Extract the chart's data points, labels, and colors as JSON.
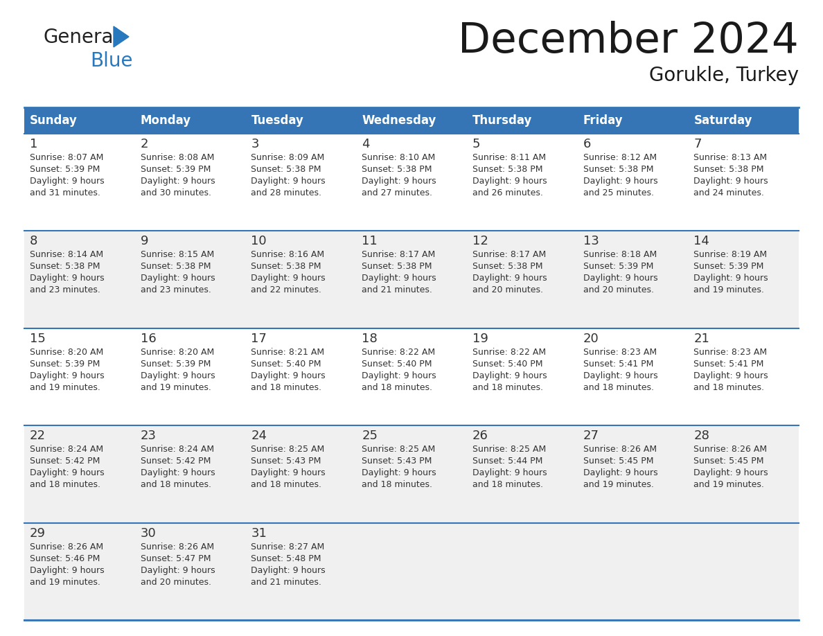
{
  "title": "December 2024",
  "subtitle": "Gorukle, Turkey",
  "header_bg_color": "#3575b5",
  "header_text_color": "#ffffff",
  "row_bg_white": "#ffffff",
  "row_bg_gray": "#f0f0f0",
  "day_names": [
    "Sunday",
    "Monday",
    "Tuesday",
    "Wednesday",
    "Thursday",
    "Friday",
    "Saturday"
  ],
  "calendar_data": [
    [
      {
        "day": 1,
        "sunrise": "8:07 AM",
        "sunset": "5:39 PM",
        "daylight_hours": 9,
        "daylight_minutes": 31
      },
      {
        "day": 2,
        "sunrise": "8:08 AM",
        "sunset": "5:39 PM",
        "daylight_hours": 9,
        "daylight_minutes": 30
      },
      {
        "day": 3,
        "sunrise": "8:09 AM",
        "sunset": "5:38 PM",
        "daylight_hours": 9,
        "daylight_minutes": 28
      },
      {
        "day": 4,
        "sunrise": "8:10 AM",
        "sunset": "5:38 PM",
        "daylight_hours": 9,
        "daylight_minutes": 27
      },
      {
        "day": 5,
        "sunrise": "8:11 AM",
        "sunset": "5:38 PM",
        "daylight_hours": 9,
        "daylight_minutes": 26
      },
      {
        "day": 6,
        "sunrise": "8:12 AM",
        "sunset": "5:38 PM",
        "daylight_hours": 9,
        "daylight_minutes": 25
      },
      {
        "day": 7,
        "sunrise": "8:13 AM",
        "sunset": "5:38 PM",
        "daylight_hours": 9,
        "daylight_minutes": 24
      }
    ],
    [
      {
        "day": 8,
        "sunrise": "8:14 AM",
        "sunset": "5:38 PM",
        "daylight_hours": 9,
        "daylight_minutes": 23
      },
      {
        "day": 9,
        "sunrise": "8:15 AM",
        "sunset": "5:38 PM",
        "daylight_hours": 9,
        "daylight_minutes": 23
      },
      {
        "day": 10,
        "sunrise": "8:16 AM",
        "sunset": "5:38 PM",
        "daylight_hours": 9,
        "daylight_minutes": 22
      },
      {
        "day": 11,
        "sunrise": "8:17 AM",
        "sunset": "5:38 PM",
        "daylight_hours": 9,
        "daylight_minutes": 21
      },
      {
        "day": 12,
        "sunrise": "8:17 AM",
        "sunset": "5:38 PM",
        "daylight_hours": 9,
        "daylight_minutes": 20
      },
      {
        "day": 13,
        "sunrise": "8:18 AM",
        "sunset": "5:39 PM",
        "daylight_hours": 9,
        "daylight_minutes": 20
      },
      {
        "day": 14,
        "sunrise": "8:19 AM",
        "sunset": "5:39 PM",
        "daylight_hours": 9,
        "daylight_minutes": 19
      }
    ],
    [
      {
        "day": 15,
        "sunrise": "8:20 AM",
        "sunset": "5:39 PM",
        "daylight_hours": 9,
        "daylight_minutes": 19
      },
      {
        "day": 16,
        "sunrise": "8:20 AM",
        "sunset": "5:39 PM",
        "daylight_hours": 9,
        "daylight_minutes": 19
      },
      {
        "day": 17,
        "sunrise": "8:21 AM",
        "sunset": "5:40 PM",
        "daylight_hours": 9,
        "daylight_minutes": 18
      },
      {
        "day": 18,
        "sunrise": "8:22 AM",
        "sunset": "5:40 PM",
        "daylight_hours": 9,
        "daylight_minutes": 18
      },
      {
        "day": 19,
        "sunrise": "8:22 AM",
        "sunset": "5:40 PM",
        "daylight_hours": 9,
        "daylight_minutes": 18
      },
      {
        "day": 20,
        "sunrise": "8:23 AM",
        "sunset": "5:41 PM",
        "daylight_hours": 9,
        "daylight_minutes": 18
      },
      {
        "day": 21,
        "sunrise": "8:23 AM",
        "sunset": "5:41 PM",
        "daylight_hours": 9,
        "daylight_minutes": 18
      }
    ],
    [
      {
        "day": 22,
        "sunrise": "8:24 AM",
        "sunset": "5:42 PM",
        "daylight_hours": 9,
        "daylight_minutes": 18
      },
      {
        "day": 23,
        "sunrise": "8:24 AM",
        "sunset": "5:42 PM",
        "daylight_hours": 9,
        "daylight_minutes": 18
      },
      {
        "day": 24,
        "sunrise": "8:25 AM",
        "sunset": "5:43 PM",
        "daylight_hours": 9,
        "daylight_minutes": 18
      },
      {
        "day": 25,
        "sunrise": "8:25 AM",
        "sunset": "5:43 PM",
        "daylight_hours": 9,
        "daylight_minutes": 18
      },
      {
        "day": 26,
        "sunrise": "8:25 AM",
        "sunset": "5:44 PM",
        "daylight_hours": 9,
        "daylight_minutes": 18
      },
      {
        "day": 27,
        "sunrise": "8:26 AM",
        "sunset": "5:45 PM",
        "daylight_hours": 9,
        "daylight_minutes": 19
      },
      {
        "day": 28,
        "sunrise": "8:26 AM",
        "sunset": "5:45 PM",
        "daylight_hours": 9,
        "daylight_minutes": 19
      }
    ],
    [
      {
        "day": 29,
        "sunrise": "8:26 AM",
        "sunset": "5:46 PM",
        "daylight_hours": 9,
        "daylight_minutes": 19
      },
      {
        "day": 30,
        "sunrise": "8:26 AM",
        "sunset": "5:47 PM",
        "daylight_hours": 9,
        "daylight_minutes": 20
      },
      {
        "day": 31,
        "sunrise": "8:27 AM",
        "sunset": "5:48 PM",
        "daylight_hours": 9,
        "daylight_minutes": 21
      },
      null,
      null,
      null,
      null
    ]
  ],
  "grid_line_color": "#3575b5",
  "text_color": "#333333",
  "logo_color1": "#222222",
  "logo_color2": "#2878be",
  "logo_triangle_color": "#2878be"
}
